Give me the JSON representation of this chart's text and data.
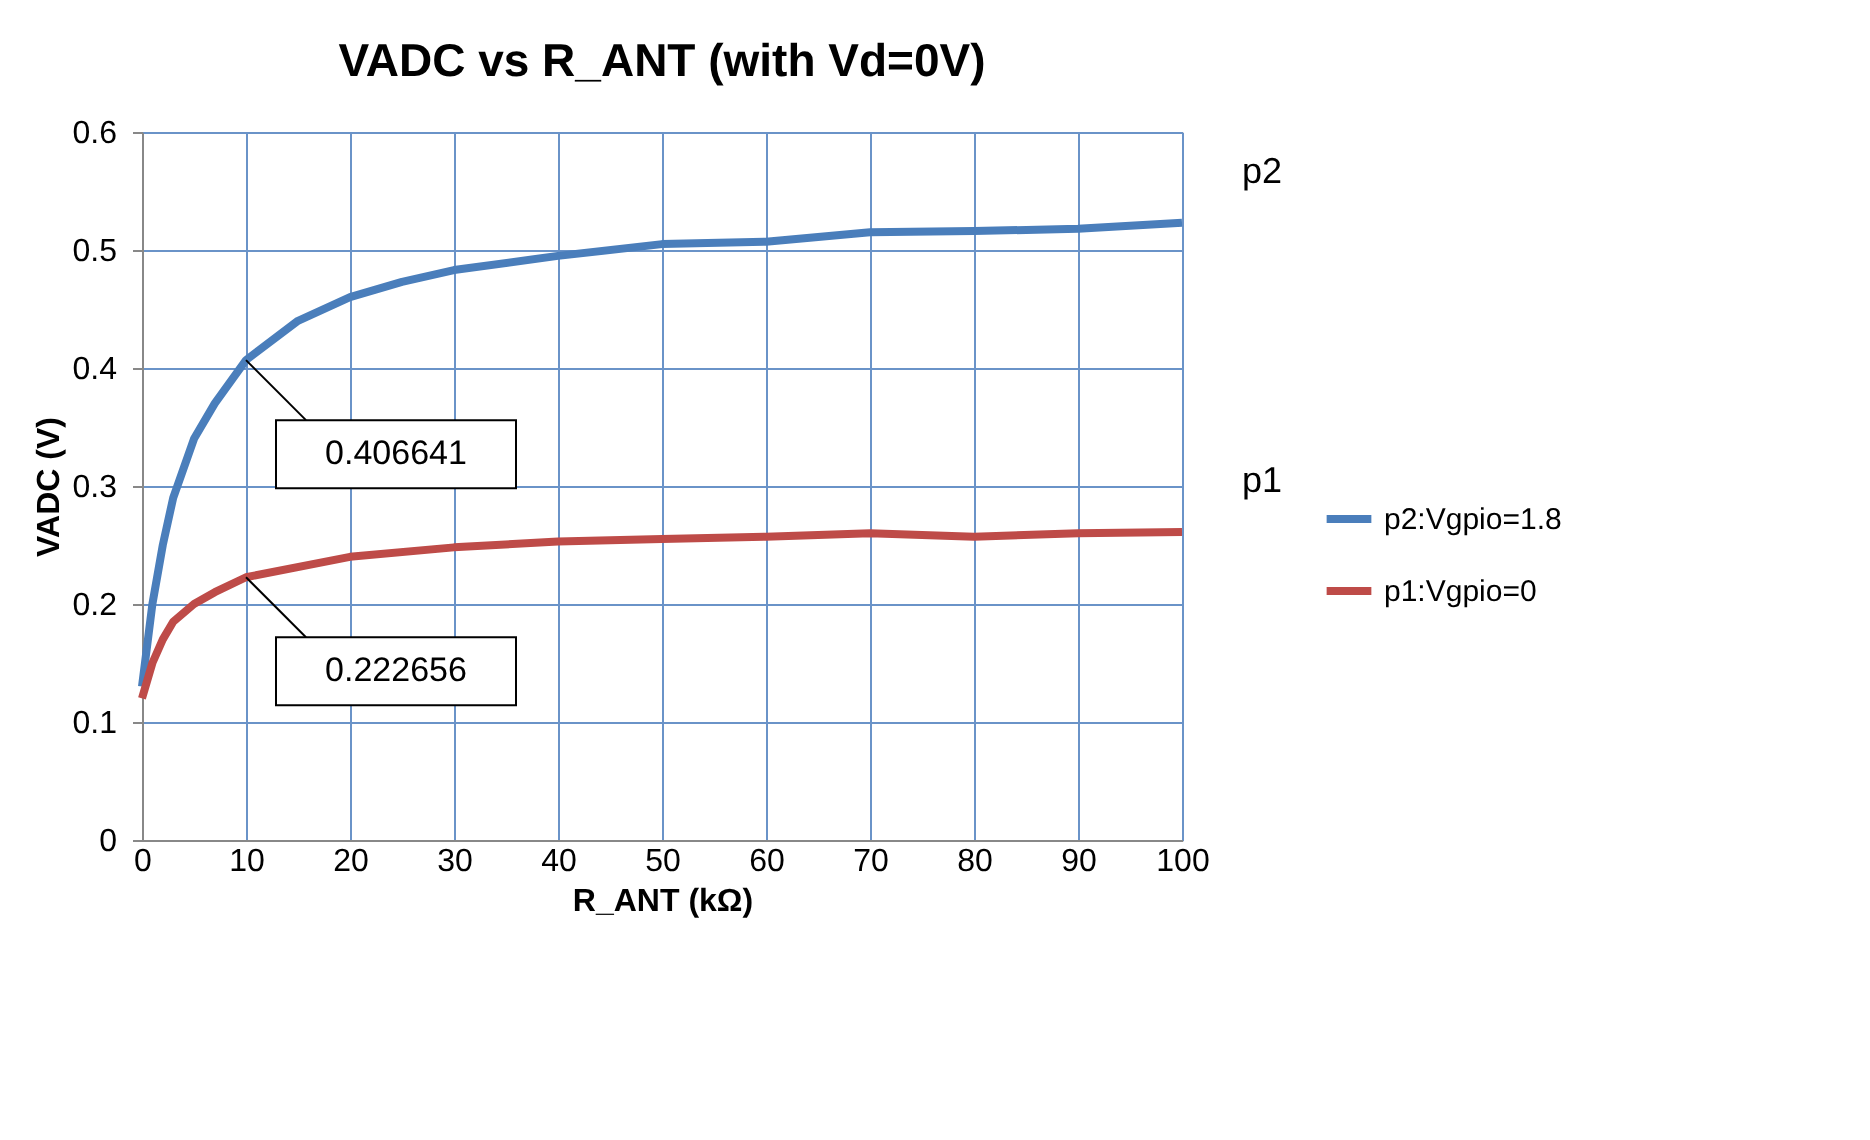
{
  "chart_data": {
    "type": "line",
    "title": "VADC vs R_ANT (with Vd=0V)",
    "xlabel": "R_ANT (kΩ)",
    "ylabel": "VADC (V)",
    "xlim": [
      0,
      100
    ],
    "xticks": [
      0,
      10,
      20,
      30,
      40,
      50,
      60,
      70,
      80,
      90,
      100
    ],
    "ylim": [
      0,
      0.6
    ],
    "yticks": [
      0,
      0.1,
      0.2,
      0.3,
      0.4,
      0.5,
      0.6
    ],
    "grid": true,
    "legend": "right",
    "line_style": "solid",
    "marker": "none",
    "series": [
      {
        "name": "p2:Vgpio=1.8",
        "color": "#4a7ebb",
        "x": [
          0,
          1,
          2,
          3,
          5,
          7,
          10,
          15,
          20,
          25,
          30,
          40,
          50,
          60,
          70,
          80,
          90,
          100
        ],
        "values": [
          0.13,
          0.2,
          0.25,
          0.29,
          0.34,
          0.37,
          0.406641,
          0.44,
          0.46,
          0.473,
          0.483,
          0.495,
          0.505,
          0.507,
          0.515,
          0.516,
          0.518,
          0.523
        ]
      },
      {
        "name": "p1:Vgpio=0",
        "color": "#be4b48",
        "x": [
          0,
          1,
          2,
          3,
          5,
          7,
          10,
          20,
          30,
          40,
          50,
          60,
          70,
          80,
          90,
          100
        ],
        "values": [
          0.12,
          0.15,
          0.17,
          0.185,
          0.2,
          0.21,
          0.222656,
          0.24,
          0.248,
          0.253,
          0.255,
          0.257,
          0.26,
          0.257,
          0.26,
          0.261
        ]
      }
    ],
    "annotations": [
      {
        "text": "0.406641",
        "x": 10,
        "y": 0.406641
      },
      {
        "text": "0.222656",
        "x": 10,
        "y": 0.222656
      },
      "p2",
      "p1"
    ]
  }
}
